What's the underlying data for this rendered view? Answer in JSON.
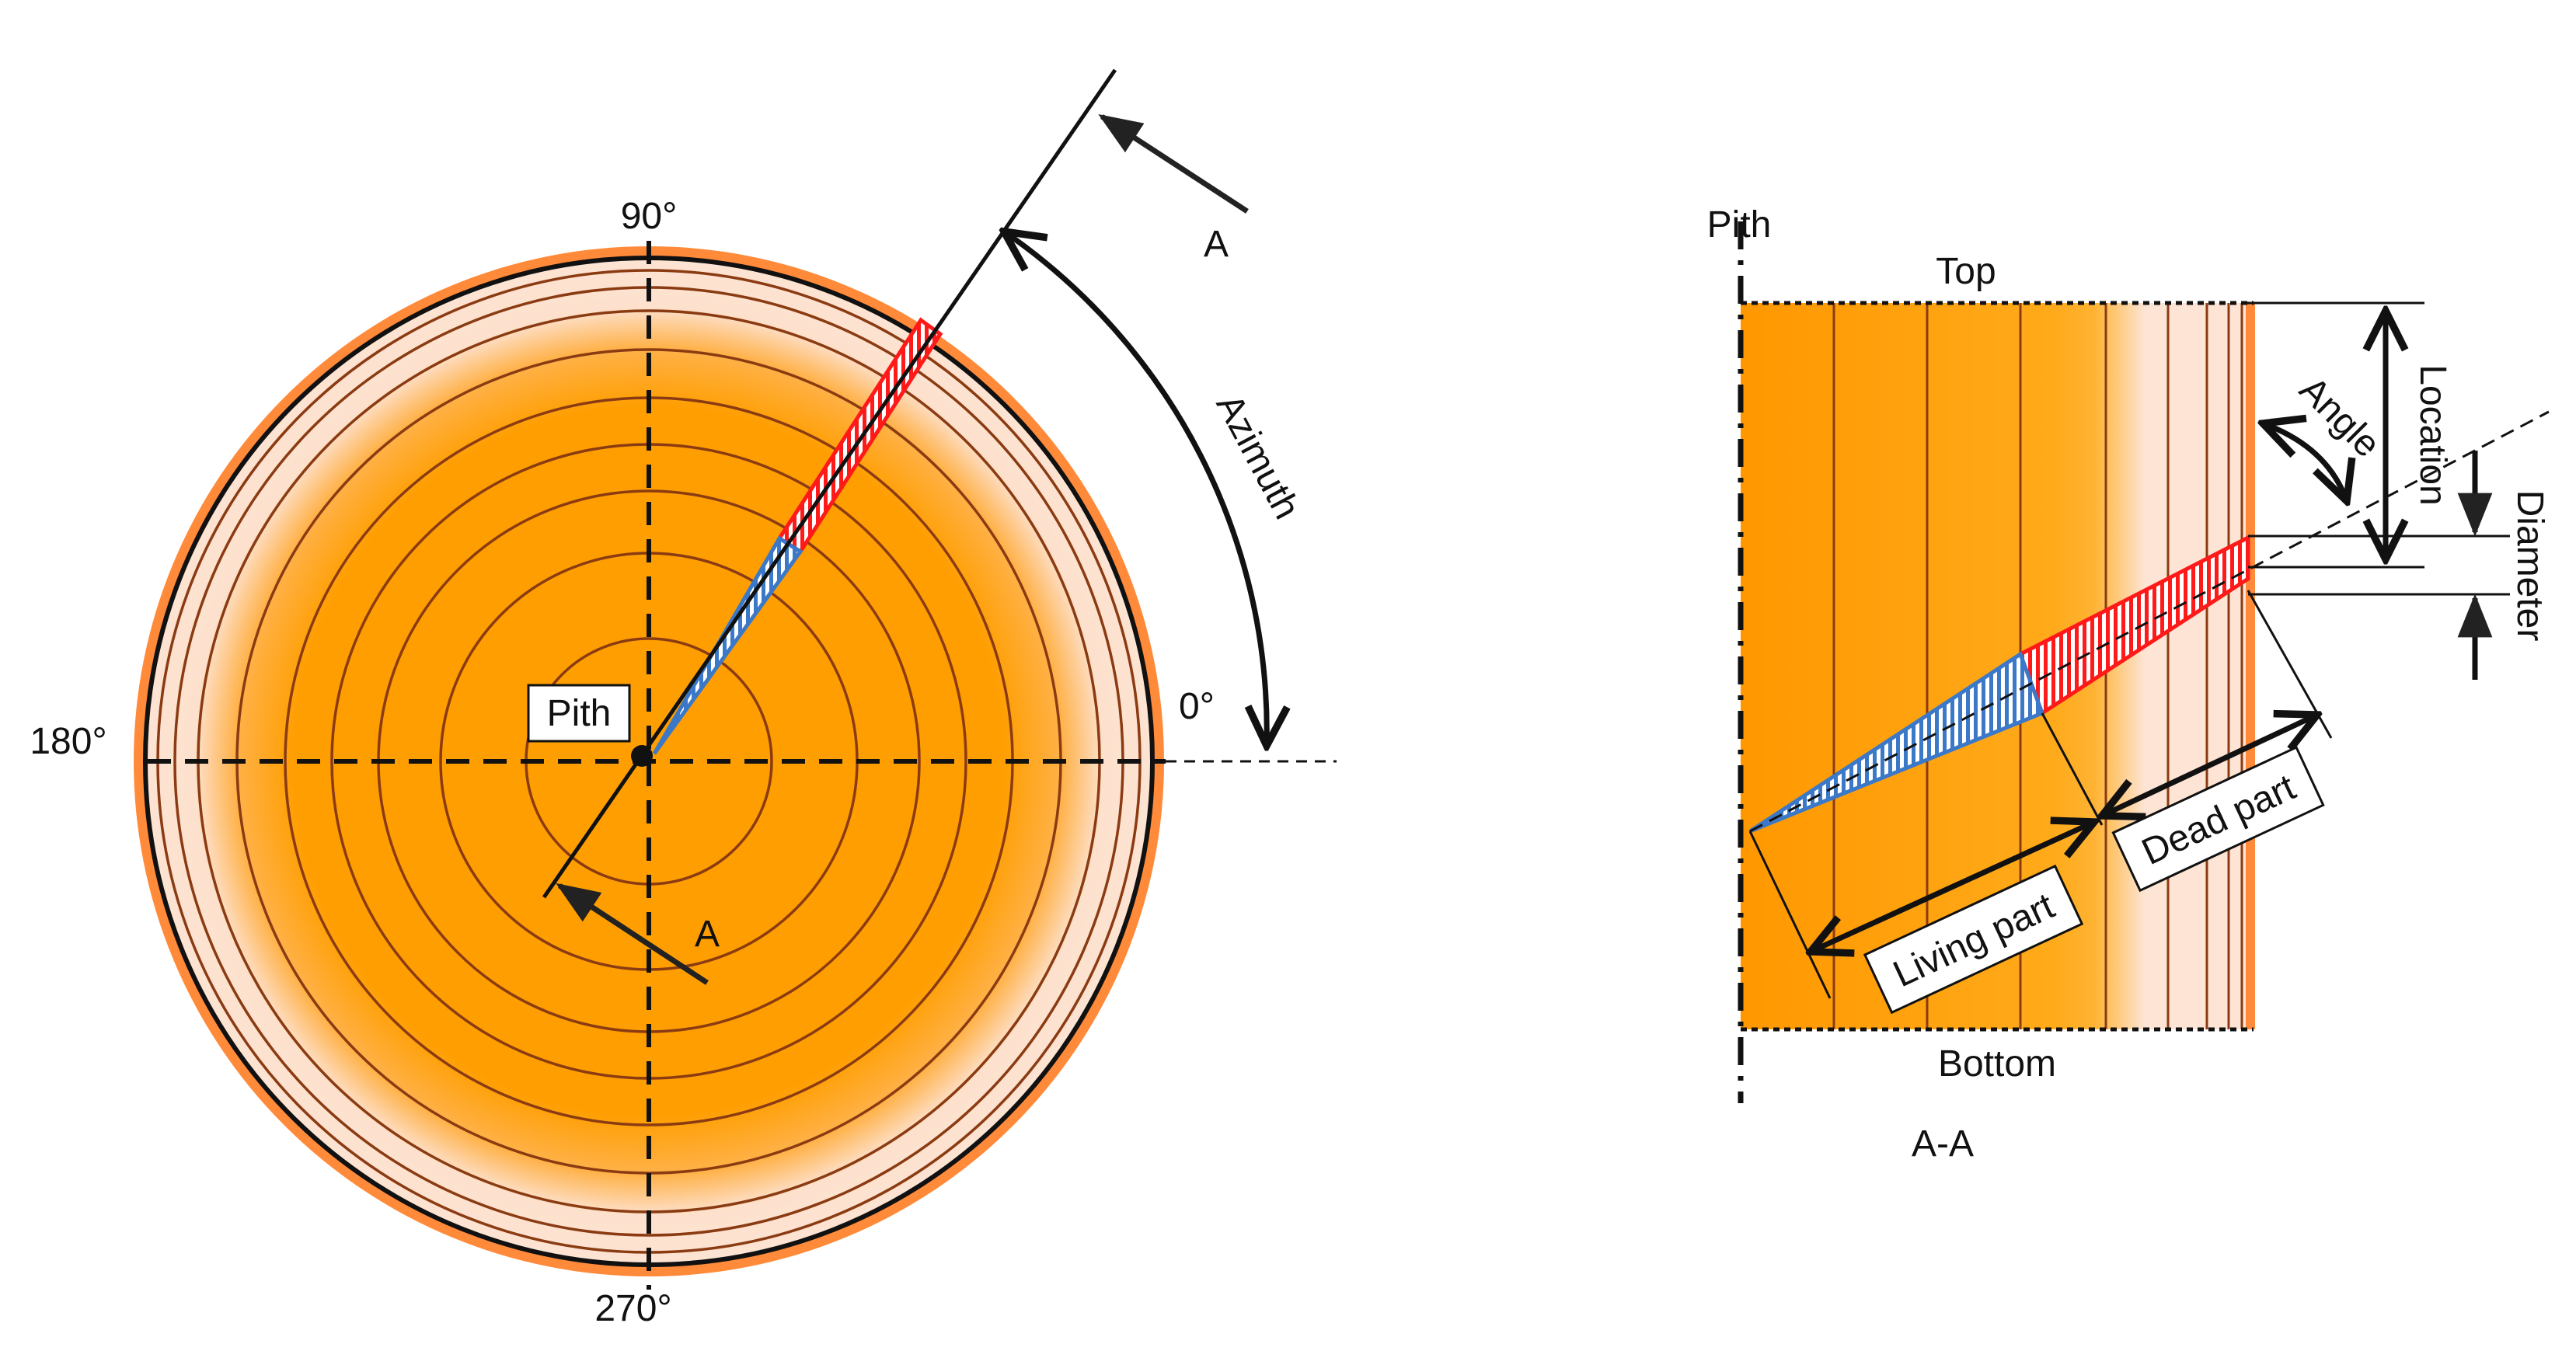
{
  "cross_section": {
    "angle_90": "90°",
    "angle_180": "180°",
    "angle_0": "0°",
    "angle_270": "270°",
    "pith_label": "Pith",
    "azimuth_label": "Azimuth",
    "section_marker_top": "A",
    "section_marker_bottom": "A"
  },
  "longitudinal_section": {
    "pith_label": "Pith",
    "top_label": "Top",
    "bottom_label": "Bottom",
    "location_label": "Location",
    "angle_label": "Angle",
    "diameter_label": "Diameter",
    "living_part_label": "Living part",
    "dead_part_label": "Dead part",
    "section_caption": "A-A"
  },
  "colors": {
    "heartwood": "#ff9e00",
    "bark": "#ff8a3a",
    "ring_line": "#8a3b12",
    "sapwood_light": "#fde3d3",
    "dead_part": "#ff1a1a",
    "living_part": "#3b78c8"
  }
}
